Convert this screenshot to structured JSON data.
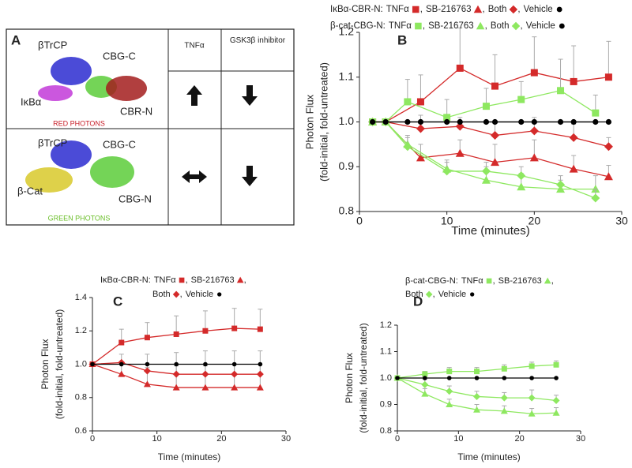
{
  "panel_a": {
    "label": "A",
    "headers": [
      "TNFα",
      "GSK3β inhibitor"
    ],
    "rows": [
      {
        "labels": [
          "βTrCP",
          "CBG-C",
          "IκBα",
          "CBR-N"
        ],
        "caption": "RED PHOTONS"
      },
      {
        "labels": [
          "βTrCP",
          "CBG-C",
          "β-Cat",
          "CBG-N"
        ],
        "caption": "GREEN PHOTONS"
      }
    ]
  },
  "chart_data": [
    {
      "type": "line",
      "label": "B",
      "ylabel": [
        "Photon Flux",
        "(fold-initial, fold-untreated)"
      ],
      "xlabel": "Time (minutes)",
      "xlim": [
        0,
        30
      ],
      "xticks": [
        0,
        10,
        20,
        30
      ],
      "ylim": [
        0.8,
        1.2
      ],
      "yticks": [
        0.8,
        0.9,
        {
          "value": 1,
          "label": "1.0"
        },
        1.1,
        1.2
      ],
      "legend_separator": ",",
      "groups": [
        {
          "name": "IκBα-CBR-N:",
          "x": [
            1.5,
            3,
            7,
            11.5,
            15.5,
            20,
            24.5,
            28.5
          ],
          "series": [
            {
              "name": "TNFα",
              "marker": "square",
              "color": "#d42a2a",
              "values": [
                1.0,
                1.0,
                1.045,
                1.12,
                1.08,
                1.11,
                1.09,
                1.1
              ],
              "errors": [
                0,
                0,
                0.06,
                0.09,
                0.07,
                0.08,
                0.08,
                0.08
              ]
            },
            {
              "name": "SB-216763",
              "marker": "triangle",
              "color": "#d42a2a",
              "values": [
                1.0,
                1.0,
                0.92,
                0.93,
                0.91,
                0.92,
                0.895,
                0.878
              ],
              "errors": [
                0,
                0,
                0.03,
                0.03,
                0.04,
                0.04,
                0.03,
                0.025
              ]
            },
            {
              "name": "Both",
              "marker": "diamond",
              "color": "#d42a2a",
              "values": [
                1.0,
                1.0,
                0.985,
                0.99,
                0.97,
                0.98,
                0.965,
                0.945
              ],
              "errors": [
                0,
                0,
                0.03,
                0.02,
                0.03,
                0.03,
                0.03,
                0.02
              ]
            },
            {
              "name": "Vehicle",
              "marker": "circle",
              "color": "#000000",
              "values": [
                1.0,
                1.0,
                1.0,
                1.0,
                1.0,
                1.0,
                1.0,
                1.0
              ]
            }
          ]
        },
        {
          "name": "β-cat-CBG-N:",
          "x": [
            1.5,
            3,
            5.5,
            10,
            14.5,
            18.5,
            23,
            27
          ],
          "series": [
            {
              "name": "TNFα",
              "marker": "square",
              "color": "#8ee860",
              "values": [
                1.0,
                1.0,
                1.045,
                1.01,
                1.035,
                1.05,
                1.07,
                1.02
              ],
              "errors": [
                0,
                0,
                0.05,
                0.04,
                0.04,
                0.04,
                0.07,
                0.04
              ]
            },
            {
              "name": "SB-216763",
              "marker": "triangle",
              "color": "#8ee860",
              "values": [
                1.0,
                1.0,
                0.95,
                0.895,
                0.87,
                0.855,
                0.85,
                0.85
              ],
              "errors": [
                0,
                0,
                0.02,
                0.02,
                0.03,
                0.03,
                0.02,
                0.03
              ]
            },
            {
              "name": "Both",
              "marker": "diamond",
              "color": "#8ee860",
              "values": [
                1.0,
                1.0,
                0.945,
                0.89,
                0.89,
                0.88,
                0.86,
                0.83
              ],
              "errors": [
                0,
                0,
                0.02,
                0.02,
                0.02,
                0.02,
                0.02,
                0.02
              ]
            },
            {
              "name": "Vehicle",
              "marker": "circle",
              "color": "#000000",
              "values": [
                1.0,
                1.0,
                1.0,
                1.0,
                1.0,
                1.0,
                1.0,
                1.0
              ]
            }
          ]
        }
      ]
    },
    {
      "type": "line",
      "label": "C",
      "ylabel": [
        "Photon Flux",
        "(fold-initial, fold-untreated)"
      ],
      "xlabel": "Time (minutes)",
      "xlim": [
        0,
        30
      ],
      "xticks": [
        0,
        10,
        20,
        30
      ],
      "ylim": [
        0.6,
        1.4
      ],
      "yticks": [
        0.6,
        0.8,
        {
          "value": 1,
          "label": "1.0"
        },
        1.2,
        1.4
      ],
      "legend_separator": ",",
      "groups": [
        {
          "name": "IκBα-CBR-N:",
          "x": [
            0,
            4.5,
            8.5,
            13,
            17.5,
            22,
            26
          ],
          "series": [
            {
              "name": "TNFα",
              "marker": "square",
              "color": "#d42a2a",
              "values": [
                1.0,
                1.13,
                1.16,
                1.18,
                1.2,
                1.215,
                1.21
              ],
              "errors": [
                0,
                0.08,
                0.09,
                0.11,
                0.12,
                0.12,
                0.12
              ]
            },
            {
              "name": "SB-216763",
              "marker": "triangle",
              "color": "#d42a2a",
              "values": [
                1.0,
                0.94,
                0.88,
                0.86,
                0.86,
                0.86,
                0.86
              ],
              "errors": [
                0,
                0.06,
                0.1,
                0.13,
                0.13,
                0.14,
                0.14
              ]
            },
            {
              "name": "Both",
              "marker": "diamond",
              "color": "#d42a2a",
              "values": [
                1.0,
                1.01,
                0.96,
                0.94,
                0.94,
                0.94,
                0.94
              ],
              "errors": [
                0,
                0.05,
                0.1,
                0.13,
                0.14,
                0.14,
                0.14
              ]
            },
            {
              "name": "Vehicle",
              "marker": "circle",
              "color": "#000000",
              "values": [
                1.0,
                1.0,
                1.0,
                1.0,
                1.0,
                1.0,
                1.0
              ]
            }
          ]
        }
      ]
    },
    {
      "type": "line",
      "label": "D",
      "ylabel": [
        "Photon Flux",
        "(fold-initial, fold-untreated)"
      ],
      "xlabel": "Time (minutes)",
      "xlim": [
        0,
        30
      ],
      "xticks": [
        0,
        10,
        20,
        30
      ],
      "ylim": [
        0.8,
        1.2
      ],
      "yticks": [
        0.8,
        0.9,
        {
          "value": 1,
          "label": "1.0"
        },
        1.1,
        1.2
      ],
      "legend_separator": ",",
      "groups": [
        {
          "name": "β-cat-CBG-N:",
          "x": [
            0,
            4.5,
            8.5,
            13,
            17.5,
            22,
            26
          ],
          "series": [
            {
              "name": "TNFα",
              "marker": "square",
              "color": "#8ee860",
              "values": [
                1.0,
                1.015,
                1.025,
                1.025,
                1.035,
                1.045,
                1.05
              ],
              "errors": [
                0,
                0.01,
                0.015,
                0.015,
                0.015,
                0.015,
                0.015
              ]
            },
            {
              "name": "SB-216763",
              "marker": "triangle",
              "color": "#8ee860",
              "values": [
                1.0,
                0.94,
                0.9,
                0.88,
                0.875,
                0.865,
                0.868
              ],
              "errors": [
                0,
                0.02,
                0.02,
                0.02,
                0.02,
                0.02,
                0.02
              ]
            },
            {
              "name": "Both",
              "marker": "diamond",
              "color": "#8ee860",
              "values": [
                1.0,
                0.975,
                0.95,
                0.93,
                0.925,
                0.925,
                0.915
              ],
              "errors": [
                0,
                0.02,
                0.02,
                0.02,
                0.02,
                0.03,
                0.02
              ]
            },
            {
              "name": "Vehicle",
              "marker": "circle",
              "color": "#000000",
              "values": [
                1.0,
                1.0,
                1.0,
                1.0,
                1.0,
                1.0,
                1.0
              ]
            }
          ]
        }
      ]
    }
  ]
}
